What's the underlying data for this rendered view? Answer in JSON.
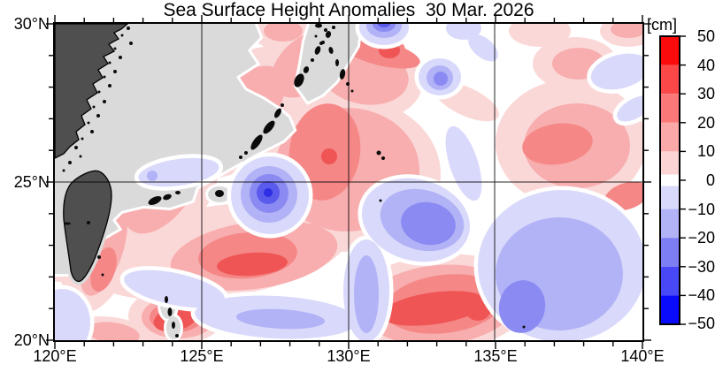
{
  "title": "Sea Surface Height Anomalies  30 Mar. 2026",
  "axes": {
    "lon_labels": [
      "120°E",
      "125°E",
      "130°E",
      "135°E",
      "140°E"
    ],
    "lat_labels": [
      "30°N",
      "25°N",
      "20°N"
    ]
  },
  "colorbar": {
    "unit_label": "[cm]",
    "tick_labels": [
      "50",
      "40",
      "30",
      "20",
      "10",
      "0",
      "−10",
      "−20",
      "−30",
      "−40",
      "−50"
    ],
    "levels": [
      50,
      40,
      30,
      20,
      10,
      0,
      -10,
      -20,
      -30,
      -40,
      -50
    ],
    "segments": [
      {
        "from": 50,
        "to": 40,
        "color": "#fb0b0b"
      },
      {
        "from": 40,
        "to": 30,
        "color": "#fa4848"
      },
      {
        "from": 30,
        "to": 20,
        "color": "#fa7878"
      },
      {
        "from": 20,
        "to": 10,
        "color": "#fba8a8"
      },
      {
        "from": 10,
        "to": 2,
        "color": "#fdd4d4"
      },
      {
        "from": 2,
        "to": -2,
        "color": "#ffffff"
      },
      {
        "from": -2,
        "to": -10,
        "color": "#d9d9fb"
      },
      {
        "from": -10,
        "to": -20,
        "color": "#b2b2f7"
      },
      {
        "from": -20,
        "to": -30,
        "color": "#7d7df4"
      },
      {
        "from": -30,
        "to": -40,
        "color": "#4848f7"
      },
      {
        "from": -40,
        "to": -50,
        "color": "#0b0bfb"
      }
    ]
  },
  "map_palette": {
    "positive_anomaly_levels": [
      "#fbd8d8",
      "#f8aeae",
      "#f58787",
      "#f05555"
    ],
    "negative_anomaly_levels": [
      "#d9d9fb",
      "#b2b2f7",
      "#8a8af2",
      "#5a5aec",
      "#2e2ee4"
    ],
    "land": "#4f4f4f",
    "shallow_shelf_mask": "#dadada",
    "small_islands": "#0b0b0b",
    "ocean_neutral": "#ffffff"
  }
}
